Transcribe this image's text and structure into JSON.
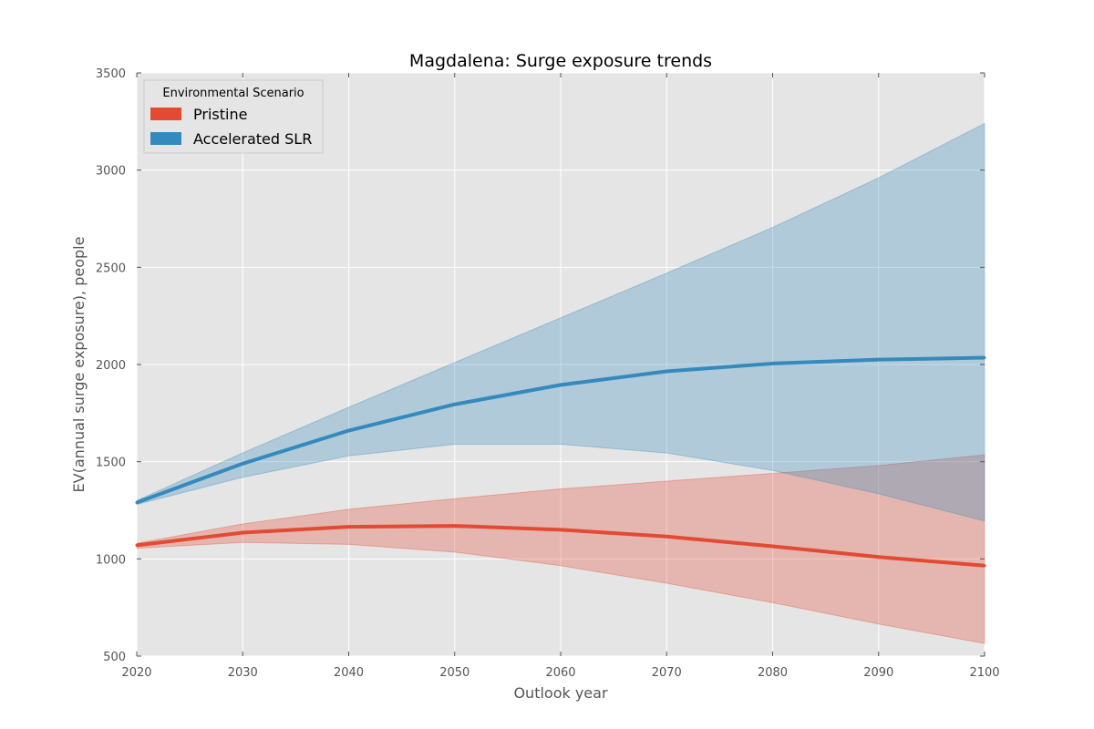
{
  "chart_data": {
    "type": "line",
    "title": "Magdalena: Surge exposure trends",
    "xlabel": "Outlook year",
    "ylabel": "EV(annual surge exposure), people",
    "xlim": [
      2020,
      2100
    ],
    "ylim": [
      500,
      3500
    ],
    "xticks": [
      2020,
      2030,
      2040,
      2050,
      2060,
      2070,
      2080,
      2090,
      2100
    ],
    "yticks": [
      500,
      1000,
      1500,
      2000,
      2500,
      3000,
      3500
    ],
    "grid": true,
    "background": "#e5e5e5",
    "legend": {
      "title": "Environmental Scenario",
      "placement": "top-left"
    },
    "x": [
      2020,
      2030,
      2040,
      2050,
      2060,
      2070,
      2080,
      2090,
      2100
    ],
    "series": [
      {
        "name": "Pristine",
        "color": "#e24a33",
        "values": [
          1070,
          1135,
          1165,
          1170,
          1150,
          1115,
          1065,
          1010,
          965
        ],
        "lower": [
          1055,
          1085,
          1075,
          1035,
          965,
          875,
          775,
          665,
          565
        ],
        "upper": [
          1080,
          1180,
          1255,
          1310,
          1360,
          1400,
          1440,
          1480,
          1535
        ]
      },
      {
        "name": "Accelerated SLR",
        "color": "#348abd",
        "values": [
          1290,
          1490,
          1660,
          1795,
          1895,
          1965,
          2005,
          2025,
          2035
        ],
        "lower": [
          1280,
          1420,
          1530,
          1590,
          1590,
          1545,
          1455,
          1335,
          1195
        ],
        "upper": [
          1300,
          1545,
          1780,
          2010,
          2240,
          2470,
          2705,
          2960,
          3240
        ]
      }
    ]
  }
}
